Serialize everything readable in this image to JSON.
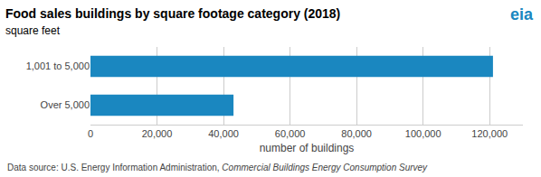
{
  "chart_data": {
    "type": "bar",
    "orientation": "horizontal",
    "title": "Food sales buildings by square footage category (2018)",
    "subtitle": "square feet",
    "categories": [
      "Over 5,000",
      "1,001 to 5,000"
    ],
    "values": [
      43000,
      121000
    ],
    "color": "#1a87c0",
    "xlabel": "number of buildings",
    "xlim": [
      0,
      130000
    ],
    "xticks": [
      0,
      {
        "value": 20000,
        "label": "20,000"
      },
      {
        "value": 40000,
        "label": "40,000"
      },
      {
        "value": 60000,
        "label": "60,000"
      },
      {
        "value": 80000,
        "label": "80,000"
      },
      {
        "value": 100000,
        "label": "100,000"
      },
      {
        "value": 120000,
        "label": "120,000"
      }
    ],
    "grid": true,
    "annotations": [
      "Data source: U.S. Energy Information Administration, ",
      "Commercial Buildings Energy Consumption Survey",
      "eia"
    ]
  }
}
